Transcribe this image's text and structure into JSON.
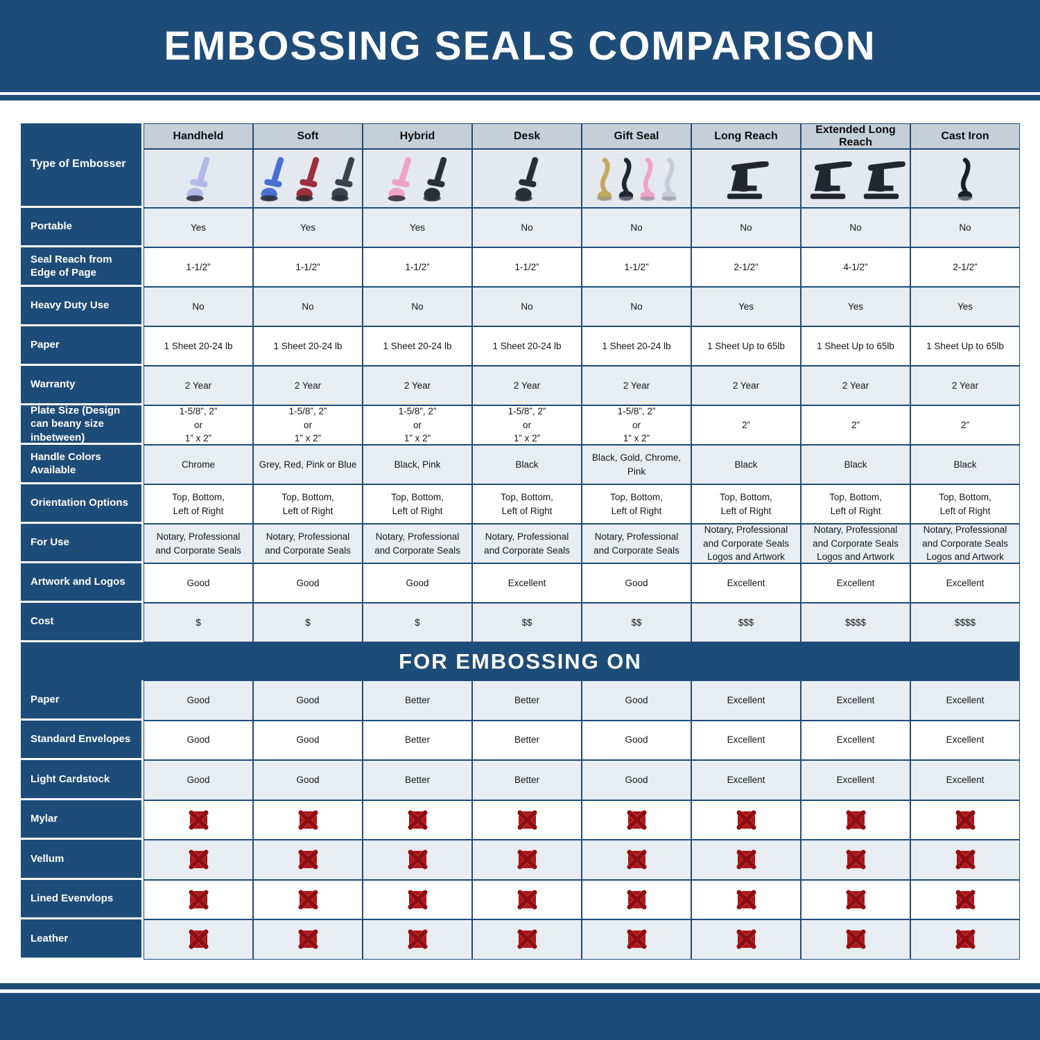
{
  "title": "EMBOSSING SEALS COMPARISON",
  "corner_label": "Type of Embosser",
  "section_title": "FOR EMBOSSING ON",
  "columns": [
    "Handheld",
    "Soft",
    "Hybrid",
    "Desk",
    "Gift Seal",
    "Long Reach",
    "Extended Long Reach",
    "Cast Iron"
  ],
  "embossers": [
    {
      "name": "handheld-embosser-photo",
      "style": "plier",
      "colors": [
        "#aeb9e6"
      ]
    },
    {
      "name": "soft-embosser-photo",
      "style": "plier",
      "colors": [
        "#4a6fd4",
        "#9c2f3d",
        "#3c414c"
      ]
    },
    {
      "name": "hybrid-embosser-photo",
      "style": "plier",
      "colors": [
        "#f0a2c6",
        "#2b2e37"
      ]
    },
    {
      "name": "desk-embosser-photo",
      "style": "plier",
      "colors": [
        "#2b2e37"
      ]
    },
    {
      "name": "gift-seal-embosser-photo",
      "style": "upright",
      "colors": [
        "#c3a95c",
        "#23262e",
        "#f0a2c6",
        "#c6ccd8"
      ]
    },
    {
      "name": "long-reach-embosser-photo",
      "style": "press",
      "colors": [
        "#23262e"
      ]
    },
    {
      "name": "extended-long-reach-embosser-photo",
      "style": "press",
      "colors": [
        "#23262e",
        "#23262e"
      ]
    },
    {
      "name": "cast-iron-embosser-photo",
      "style": "upright",
      "colors": [
        "#1c1f26"
      ]
    }
  ],
  "spec_rows": [
    {
      "label": "Portable",
      "values": [
        "Yes",
        "Yes",
        "Yes",
        "No",
        "No",
        "No",
        "No",
        "No"
      ]
    },
    {
      "label": "Seal Reach from Edge of Page",
      "values": [
        "1-1/2”",
        "1-1/2”",
        "1-1/2”",
        "1-1/2”",
        "1-1/2”",
        "2-1/2”",
        "4-1/2”",
        "2-1/2”"
      ]
    },
    {
      "label": "Heavy Duty Use",
      "values": [
        "No",
        "No",
        "No",
        "No",
        "No",
        "Yes",
        "Yes",
        "Yes"
      ]
    },
    {
      "label": "Paper",
      "values": [
        "1 Sheet 20-24 lb",
        "1 Sheet 20-24 lb",
        "1 Sheet 20-24 lb",
        "1 Sheet 20-24 lb",
        "1 Sheet 20-24 lb",
        "1 Sheet Up to 65lb",
        "1 Sheet Up to 65lb",
        "1 Sheet Up to 65lb"
      ]
    },
    {
      "label": "Warranty",
      "values": [
        "2 Year",
        "2 Year",
        "2 Year",
        "2 Year",
        "2 Year",
        "2 Year",
        "2 Year",
        "2 Year"
      ]
    },
    {
      "label": "Plate Size (Design can beany size inbetween)",
      "values": [
        "1-5/8”, 2”\nor\n1” x 2”",
        "1-5/8”, 2”\nor\n1” x 2”",
        "1-5/8”, 2”\nor\n1” x 2”",
        "1-5/8”, 2”\nor\n1” x 2”",
        "1-5/8”, 2”\nor\n1” x 2”",
        "2”",
        "2”",
        "2”"
      ]
    },
    {
      "label": "Handle Colors Available",
      "values": [
        "Chrome",
        "Grey, Red, Pink or Blue",
        "Black, Pink",
        "Black",
        "Black, Gold, Chrome, Pink",
        "Black",
        "Black",
        "Black"
      ]
    },
    {
      "label": "Orientation Options",
      "values": [
        "Top, Bottom,\nLeft of Right",
        "Top, Bottom,\nLeft of Right",
        "Top, Bottom,\nLeft of Right",
        "Top, Bottom,\nLeft of Right",
        "Top, Bottom,\nLeft of Right",
        "Top, Bottom,\nLeft of Right",
        "Top, Bottom,\nLeft of Right",
        "Top, Bottom,\nLeft of Right"
      ]
    },
    {
      "label": "For Use",
      "values": [
        "Notary, Professional\nand Corporate Seals",
        "Notary, Professional\nand Corporate Seals",
        "Notary, Professional\nand Corporate Seals",
        "Notary, Professional\nand Corporate Seals",
        "Notary, Professional\nand Corporate Seals",
        "Notary, Professional\nand Corporate Seals\nLogos and Artwork",
        "Notary, Professional\nand Corporate Seals\nLogos and Artwork",
        "Notary, Professional\nand Corporate Seals\nLogos and Artwork"
      ]
    },
    {
      "label": "Artwork and Logos",
      "values": [
        "Good",
        "Good",
        "Good",
        "Excellent",
        "Good",
        "Excellent",
        "Excellent",
        "Excellent"
      ]
    },
    {
      "label": "Cost",
      "values": [
        "$",
        "$",
        "$",
        "$$",
        "$$",
        "$$$",
        "$$$$",
        "$$$$"
      ]
    }
  ],
  "embossing_rows": [
    {
      "label": "Paper",
      "values": [
        "Good",
        "Good",
        "Better",
        "Better",
        "Good",
        "Excellent",
        "Excellent",
        "Excellent"
      ]
    },
    {
      "label": "Standard Envelopes",
      "values": [
        "Good",
        "Good",
        "Better",
        "Better",
        "Good",
        "Excellent",
        "Excellent",
        "Excellent"
      ]
    },
    {
      "label": "Light Cardstock",
      "values": [
        "Good",
        "Good",
        "Better",
        "Better",
        "Good",
        "Excellent",
        "Excellent",
        "Excellent"
      ]
    },
    {
      "label": "Mylar",
      "values": [
        "X",
        "X",
        "X",
        "X",
        "X",
        "X",
        "X",
        "X"
      ]
    },
    {
      "label": "Vellum",
      "values": [
        "X",
        "X",
        "X",
        "X",
        "X",
        "X",
        "X",
        "X"
      ]
    },
    {
      "label": "Lined Evenvlops",
      "values": [
        "X",
        "X",
        "X",
        "X",
        "X",
        "X",
        "X",
        "X"
      ]
    },
    {
      "label": "Leather",
      "values": [
        "X",
        "X",
        "X",
        "X",
        "X",
        "X",
        "X",
        "X"
      ]
    }
  ],
  "x_icon_name": "not-suitable-x-icon",
  "colors": {
    "brand_blue": "#1E4C78",
    "header_gray": "#C6CFD8",
    "image_row_bg": "#E3E9EF",
    "row_shade": "#E8EDF2",
    "x_red": "#B01217"
  }
}
